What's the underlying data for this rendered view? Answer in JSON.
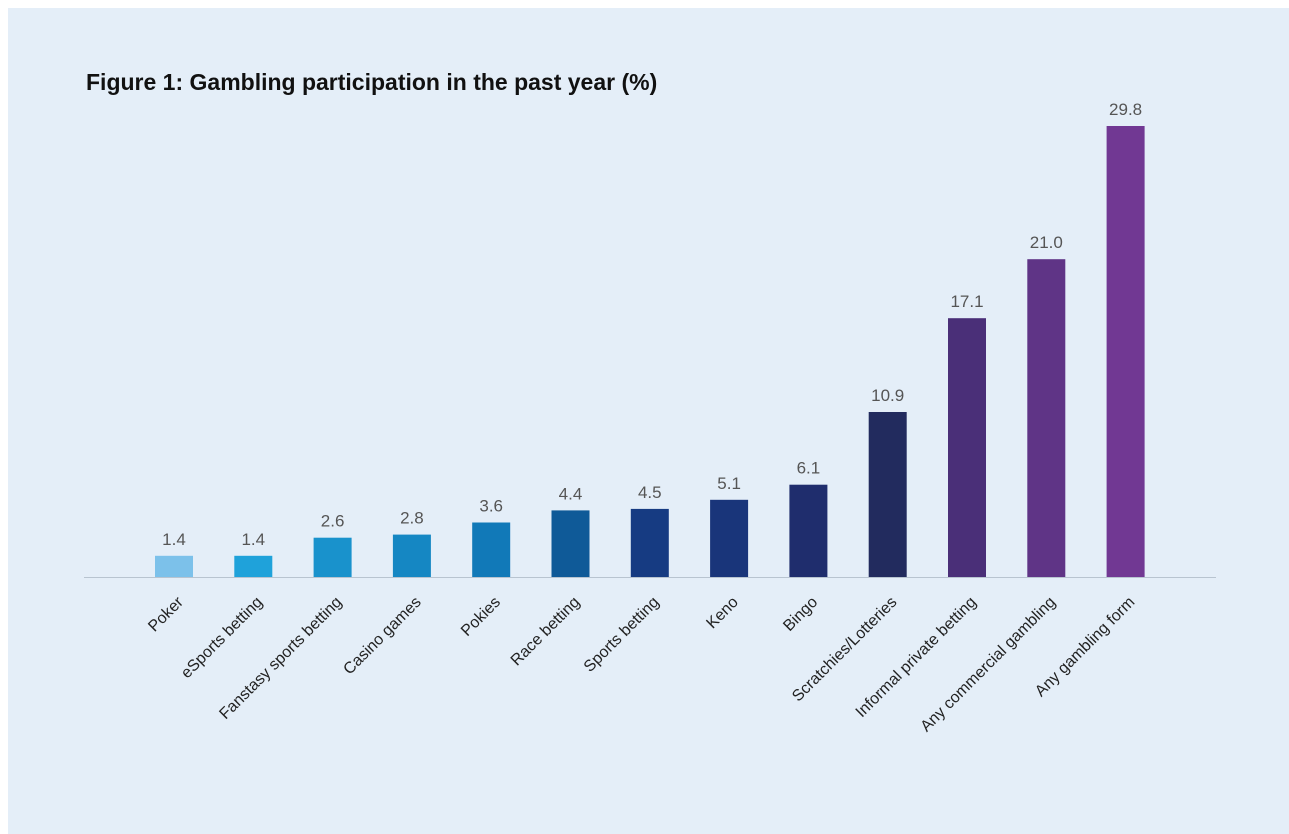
{
  "chart_data": {
    "type": "bar",
    "title": "Figure 1: Gambling participation in the past year (%)",
    "xlabel": "",
    "ylabel": "",
    "ylim": [
      0,
      29.8
    ],
    "grid": false,
    "legend": "none",
    "categories": [
      "Poker",
      "eSports betting",
      "Fanstasy sports betting",
      "Casino games",
      "Pokies",
      "Race betting",
      "Sports betting",
      "Keno",
      "Bingo",
      "Scratchies/Lotteries",
      "Informal private betting",
      "Any commercial gambling",
      "Any gambling form"
    ],
    "values": [
      1.4,
      1.4,
      2.6,
      2.8,
      3.6,
      4.4,
      4.5,
      5.1,
      6.1,
      10.9,
      17.1,
      21.0,
      29.8
    ],
    "value_labels": [
      "1.4",
      "1.4",
      "2.6",
      "2.8",
      "3.6",
      "4.4",
      "4.5",
      "5.1",
      "6.1",
      "10.9",
      "17.1",
      "21.0",
      "29.8"
    ],
    "colors": [
      "#7cc1ea",
      "#1fa2da",
      "#1992cc",
      "#1587c3",
      "#1179b8",
      "#0f5a98",
      "#163b82",
      "#19357a",
      "#1f2d6d",
      "#222b5e",
      "#4a2f78",
      "#5f3486",
      "#713893"
    ],
    "axis_color": "#b8c4d0"
  }
}
